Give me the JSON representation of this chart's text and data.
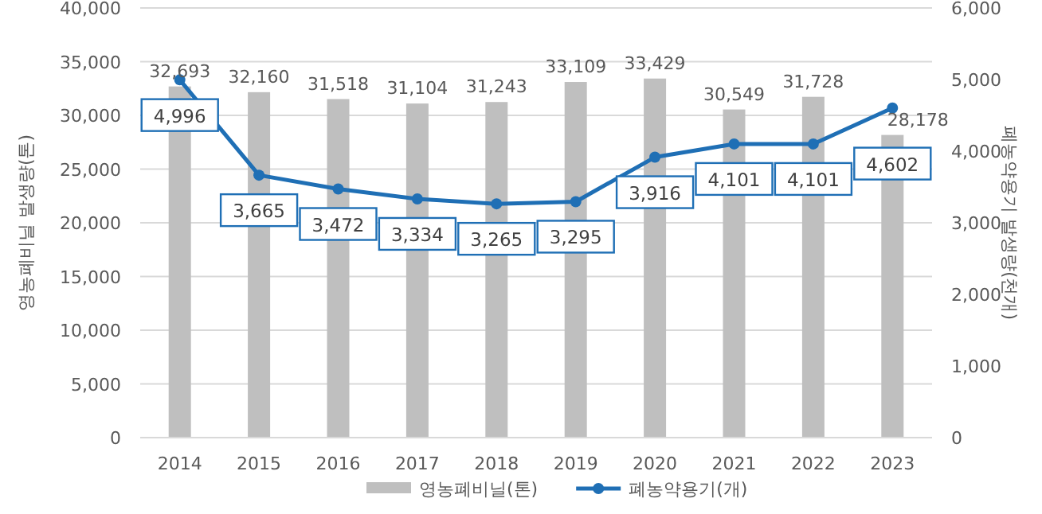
{
  "chart_data": {
    "type": "bar",
    "categories": [
      "2014",
      "2015",
      "2016",
      "2017",
      "2018",
      "2019",
      "2020",
      "2021",
      "2022",
      "2023"
    ],
    "series": [
      {
        "name": "영농폐비닐(톤)",
        "color": "#bfbfbf",
        "values": [
          32693,
          32160,
          31518,
          31104,
          31243,
          33109,
          33429,
          30549,
          31728,
          28178
        ],
        "value_labels": [
          "32,693",
          "32,160",
          "31,518",
          "31,104",
          "31,243",
          "33,109",
          "33,429",
          "30,549",
          "31,728",
          "28,178"
        ]
      },
      {
        "name": "폐농약용기(개)",
        "type": "line",
        "axis": "y2",
        "color": "#1f6fb5",
        "marker": "circle",
        "values": [
          4996,
          3665,
          3472,
          3334,
          3265,
          3295,
          3916,
          4101,
          4101,
          4602
        ],
        "value_labels": [
          "4,996",
          "3,665",
          "3,472",
          "3,334",
          "3,265",
          "3,295",
          "3,916",
          "4,101",
          "4,101",
          "4,602"
        ]
      }
    ],
    "ylabel": "영농폐비닐 발생량(톤)",
    "y2label": "폐농약용기 발생량(천개)",
    "ylim": [
      0,
      40000
    ],
    "yticks": [
      {
        "value": 0,
        "label": "0"
      },
      {
        "value": 5000,
        "label": "5,000"
      },
      {
        "value": 10000,
        "label": "10,000"
      },
      {
        "value": 15000,
        "label": "15,000"
      },
      {
        "value": 20000,
        "label": "20,000"
      },
      {
        "value": 25000,
        "label": "25,000"
      },
      {
        "value": 30000,
        "label": "30,000"
      },
      {
        "value": 35000,
        "label": "35,000"
      },
      {
        "value": 40000,
        "label": "40,000"
      }
    ],
    "y2lim": [
      0,
      6000
    ],
    "y2ticks": [
      {
        "value": 0,
        "label": "0"
      },
      {
        "value": 1000,
        "label": "1,000"
      },
      {
        "value": 2000,
        "label": "2,000"
      },
      {
        "value": 3000,
        "label": "3,000"
      },
      {
        "value": 4000,
        "label": "4,000"
      },
      {
        "value": 5000,
        "label": "5,000"
      },
      {
        "value": 6000,
        "label": "6,000"
      }
    ],
    "grid": "y",
    "legend": "bottom"
  }
}
